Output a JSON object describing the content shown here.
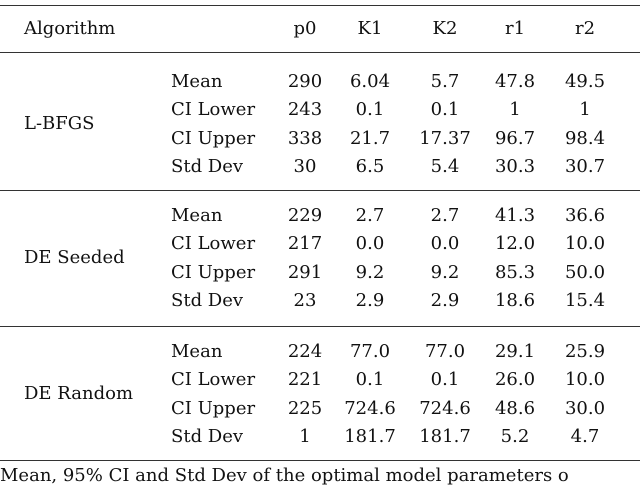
{
  "table": {
    "header": [
      "Algorithm",
      "p0",
      "K1",
      "K2",
      "r1",
      "r2"
    ],
    "groups": [
      {
        "name": "L-BFGS",
        "rows": [
          {
            "stat": "Mean",
            "values": [
              "290",
              "6.04",
              "5.7",
              "47.8",
              "49.5"
            ]
          },
          {
            "stat": "CI Lower",
            "values": [
              "243",
              "0.1",
              "0.1",
              "1",
              "1"
            ]
          },
          {
            "stat": "CI Upper",
            "values": [
              "338",
              "21.7",
              "17.37",
              "96.7",
              "98.4"
            ]
          },
          {
            "stat": "Std Dev",
            "values": [
              "30",
              "6.5",
              "5.4",
              "30.3",
              "30.7"
            ]
          }
        ]
      },
      {
        "name": "DE Seeded",
        "rows": [
          {
            "stat": "Mean",
            "values": [
              "229",
              "2.7",
              "2.7",
              "41.3",
              "36.6"
            ]
          },
          {
            "stat": "CI Lower",
            "values": [
              "217",
              "0.0",
              "0.0",
              "12.0",
              "10.0"
            ]
          },
          {
            "stat": "CI Upper",
            "values": [
              "291",
              "9.2",
              "9.2",
              "85.3",
              "50.0"
            ]
          },
          {
            "stat": "Std Dev",
            "values": [
              "23",
              "2.9",
              "2.9",
              "18.6",
              "15.4"
            ]
          }
        ]
      },
      {
        "name": "DE Random",
        "rows": [
          {
            "stat": "Mean",
            "values": [
              "224",
              "77.0",
              "77.0",
              "29.1",
              "25.9"
            ]
          },
          {
            "stat": "CI Lower",
            "values": [
              "221",
              "0.1",
              "0.1",
              "26.0",
              "10.0"
            ]
          },
          {
            "stat": "CI Upper",
            "values": [
              "225",
              "724.6",
              "724.6",
              "48.6",
              "30.0"
            ]
          },
          {
            "stat": "Std Dev",
            "values": [
              "1",
              "181.7",
              "181.7",
              "5.2",
              "4.7"
            ]
          }
        ]
      }
    ],
    "caption": "Mean, 95% CI and Std Dev of the optimal model parameters o"
  }
}
